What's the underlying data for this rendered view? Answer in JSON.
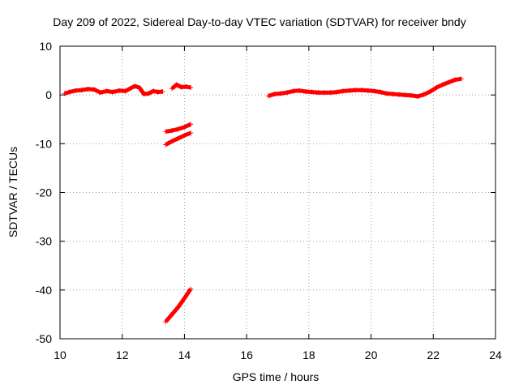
{
  "chart_data": {
    "type": "line",
    "title": "Day 209 of 2022, Sidereal Day-to-day VTEC variation (SDTVAR) for receiver bndy",
    "xlabel": "GPS time / hours",
    "ylabel": "SDTVAR / TECUs",
    "xlim": [
      10,
      24
    ],
    "ylim": [
      -50,
      10
    ],
    "xticks": [
      10,
      12,
      14,
      16,
      18,
      20,
      22,
      24
    ],
    "yticks": [
      10,
      0,
      -10,
      -20,
      -30,
      -40,
      -50
    ],
    "grid": true,
    "color": "#ff0000",
    "series": [
      {
        "name": "seg1",
        "x": [
          10.15,
          10.3,
          10.5,
          10.7,
          10.9,
          11.1,
          11.3,
          11.5,
          11.7,
          11.9,
          12.1,
          12.25,
          12.4,
          12.55,
          12.7,
          12.85,
          13.0,
          13.15,
          13.3
        ],
        "y": [
          0.3,
          0.6,
          0.9,
          1.0,
          1.2,
          1.1,
          0.5,
          0.8,
          0.6,
          0.9,
          0.8,
          1.3,
          1.8,
          1.5,
          0.2,
          0.3,
          0.8,
          0.6,
          0.7
        ]
      },
      {
        "name": "seg2",
        "x": [
          13.6,
          13.75,
          13.9,
          14.05,
          14.2
        ],
        "y": [
          1.3,
          2.1,
          1.6,
          1.7,
          1.5
        ]
      },
      {
        "name": "seg3",
        "x": [
          13.4,
          13.6,
          13.8,
          14.0,
          14.2
        ],
        "y": [
          -7.5,
          -7.3,
          -7.0,
          -6.6,
          -6.0
        ]
      },
      {
        "name": "seg4",
        "x": [
          13.4,
          13.6,
          13.8,
          14.0,
          14.2
        ],
        "y": [
          -10.2,
          -9.5,
          -8.9,
          -8.3,
          -7.8
        ]
      },
      {
        "name": "seg5",
        "x": [
          13.4,
          13.6,
          13.8,
          14.0,
          14.2
        ],
        "y": [
          -46.5,
          -45.0,
          -43.5,
          -41.7,
          -39.8
        ]
      },
      {
        "name": "seg6",
        "x": [
          16.7,
          16.9,
          17.1,
          17.3,
          17.5,
          17.7,
          17.9,
          18.1,
          18.3,
          18.5,
          18.7,
          18.9,
          19.1,
          19.3,
          19.5,
          19.7,
          19.9,
          20.1,
          20.3,
          20.5,
          20.7,
          20.9,
          21.1,
          21.3,
          21.5,
          21.7
        ],
        "y": [
          -0.2,
          0.2,
          0.3,
          0.5,
          0.8,
          0.9,
          0.7,
          0.6,
          0.5,
          0.5,
          0.5,
          0.6,
          0.8,
          0.9,
          1.0,
          1.0,
          0.9,
          0.8,
          0.6,
          0.3,
          0.2,
          0.1,
          0.0,
          -0.1,
          -0.3,
          0.1
        ]
      },
      {
        "name": "seg7",
        "x": [
          21.7,
          21.9,
          22.1,
          22.3,
          22.5,
          22.7,
          22.9
        ],
        "y": [
          0.1,
          0.7,
          1.5,
          2.1,
          2.6,
          3.1,
          3.3
        ]
      }
    ]
  }
}
